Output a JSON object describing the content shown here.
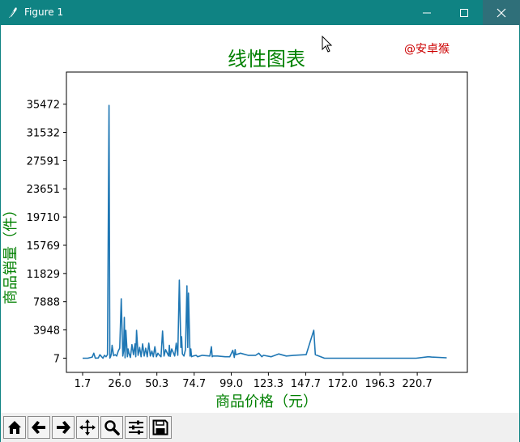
{
  "window": {
    "title": "Figure 1",
    "controls": [
      "minimize-icon",
      "maximize-icon",
      "close-icon"
    ],
    "titlebar_color": "#0f8383"
  },
  "chart_data": {
    "type": "line",
    "title": "线性图表",
    "title_color": "#008000",
    "watermark": "@安卓猴",
    "watermark_color": "#cc0000",
    "xlabel": "商品价格（元）",
    "ylabel": "商品销量（件）",
    "label_color": "#008000",
    "line_color": "#1f77b4",
    "xlim": [
      -8.9,
      253.5
    ],
    "ylim": [
      -1981,
      39957
    ],
    "xticks": [
      "1.7",
      "26.0",
      "50.3",
      "74.7",
      "99.0",
      "123.3",
      "147.7",
      "172.0",
      "196.3",
      "220.7"
    ],
    "yticks": [
      "7",
      "3948",
      "7888",
      "11829",
      "15769",
      "19710",
      "23651",
      "27591",
      "31532",
      "35472"
    ],
    "grid": false,
    "series": [
      {
        "x": [
          1.7,
          5,
          8,
          9,
          10,
          12,
          13,
          15,
          16,
          17,
          18,
          19,
          19.5,
          20,
          20.5,
          21,
          22,
          23,
          24,
          25,
          26,
          27,
          28,
          28.5,
          29,
          29.5,
          30,
          31,
          31.5,
          32,
          33,
          34,
          35,
          36,
          36.5,
          37,
          38,
          39,
          40,
          41,
          42,
          43,
          44,
          45,
          46,
          47,
          48,
          49,
          50,
          51,
          52,
          53,
          54,
          55,
          56,
          58,
          58.5,
          59,
          60,
          62,
          63,
          64,
          65,
          66,
          66.5,
          67,
          68,
          69,
          70,
          70.5,
          71,
          72,
          72.5,
          73,
          74,
          76,
          77,
          80,
          85,
          86,
          86.5,
          87,
          90,
          95,
          98,
          100,
          101,
          101.5,
          102,
          105,
          110,
          115,
          117,
          119,
          120,
          125,
          130,
          135,
          140,
          148,
          153,
          154,
          160,
          170,
          180,
          200,
          220,
          228,
          230,
          240
        ],
        "y": [
          -1,
          -1,
          150,
          700,
          -1,
          30,
          480,
          -1,
          400,
          200,
          500,
          35300,
          20,
          200,
          600,
          1800,
          350,
          500,
          300,
          1000,
          1400,
          8300,
          300,
          1000,
          5700,
          50,
          3900,
          200,
          1300,
          700,
          100,
          1900,
          500,
          2000,
          200,
          3900,
          400,
          1500,
          200,
          2000,
          300,
          1400,
          200,
          2100,
          300,
          1000,
          200,
          1600,
          200,
          700,
          400,
          200,
          3800,
          300,
          1200,
          300,
          1800,
          250,
          1300,
          300,
          2100,
          400,
          10900,
          1500,
          3000,
          600,
          300,
          1200,
          10100,
          1500,
          9100,
          300,
          1300,
          200,
          300,
          400,
          200,
          400,
          300,
          1600,
          200,
          300,
          300,
          200,
          200,
          1100,
          100,
          1200,
          500,
          700,
          400,
          400,
          700,
          200,
          400,
          200,
          600,
          300,
          400,
          500,
          3900,
          500,
          -1,
          -1,
          -1,
          -1,
          -1,
          200,
          150,
          50
        ]
      }
    ]
  },
  "toolbar": {
    "buttons": [
      "home-icon",
      "back-arrow-icon",
      "forward-arrow-icon",
      "pan-move-icon",
      "zoom-magnifier-icon",
      "configure-subplots-icon",
      "save-floppy-icon"
    ]
  }
}
